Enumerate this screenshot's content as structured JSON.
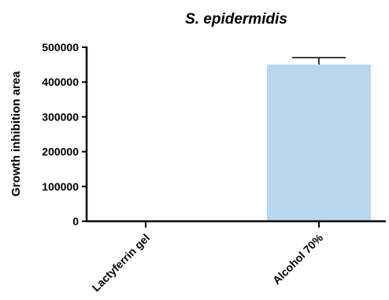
{
  "chart_data": {
    "type": "bar",
    "title": "S. epidermidis",
    "xlabel": "",
    "ylabel": "Growth inhibition area",
    "ylim": [
      0,
      500000
    ],
    "yticks": [
      "0",
      "100000",
      "200000",
      "300000",
      "400000",
      "500000"
    ],
    "categories": [
      "Lactyferrin gel",
      "Alcohol 70%"
    ],
    "values": [
      0,
      450000
    ],
    "error_upper": [
      0,
      20000
    ],
    "bar_color": "#b9d6ef",
    "grid": false
  }
}
